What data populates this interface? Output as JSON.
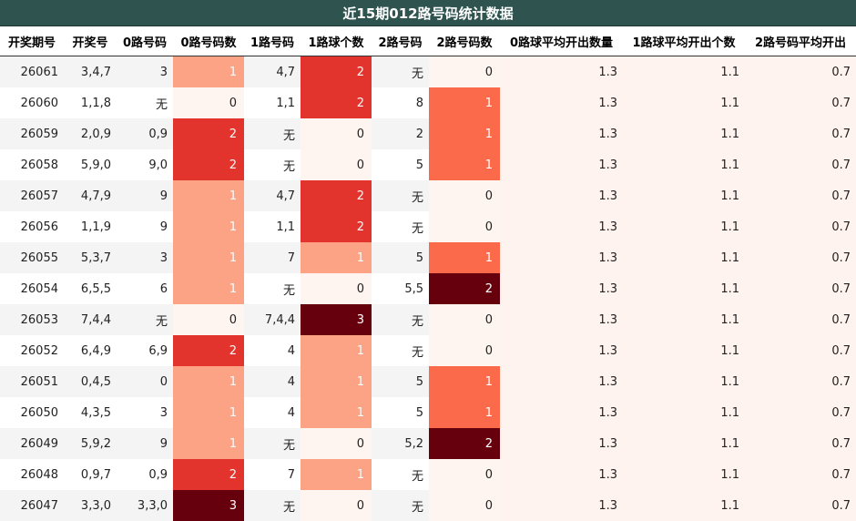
{
  "title": "近15期012路号码统计数据",
  "columns": [
    "开奖期号",
    "开奖号",
    "0路号码",
    "0路号码数",
    "1路号码",
    "1路球个数",
    "2路号码",
    "2路号码数",
    "0路球平均开出数量",
    "1路球平均开出个数",
    "2路号码平均开出"
  ],
  "colors": {
    "count_0": "#fff5f0",
    "count_1": "#fca385",
    "count_1_col2": "#fb6a4a",
    "count_2": "#e2332c",
    "count_2_col2": "#67000d",
    "count_3": "#67000d",
    "avg_bg": "#fff3ef"
  },
  "chart_data": {
    "type": "table",
    "rows": [
      {
        "issue": "26061",
        "draw": "3,4,7",
        "r0": "3",
        "c0": 1,
        "r1": "4,7",
        "c1": 2,
        "r2": "无",
        "c2": 0,
        "a0": "1.3",
        "a1": "1.1",
        "a2": "0.7"
      },
      {
        "issue": "26060",
        "draw": "1,1,8",
        "r0": "无",
        "c0": 0,
        "r1": "1,1",
        "c1": 2,
        "r2": "8",
        "c2": 1,
        "a0": "1.3",
        "a1": "1.1",
        "a2": "0.7"
      },
      {
        "issue": "26059",
        "draw": "2,0,9",
        "r0": "0,9",
        "c0": 2,
        "r1": "无",
        "c1": 0,
        "r2": "2",
        "c2": 1,
        "a0": "1.3",
        "a1": "1.1",
        "a2": "0.7"
      },
      {
        "issue": "26058",
        "draw": "5,9,0",
        "r0": "9,0",
        "c0": 2,
        "r1": "无",
        "c1": 0,
        "r2": "5",
        "c2": 1,
        "a0": "1.3",
        "a1": "1.1",
        "a2": "0.7"
      },
      {
        "issue": "26057",
        "draw": "4,7,9",
        "r0": "9",
        "c0": 1,
        "r1": "4,7",
        "c1": 2,
        "r2": "无",
        "c2": 0,
        "a0": "1.3",
        "a1": "1.1",
        "a2": "0.7"
      },
      {
        "issue": "26056",
        "draw": "1,1,9",
        "r0": "9",
        "c0": 1,
        "r1": "1,1",
        "c1": 2,
        "r2": "无",
        "c2": 0,
        "a0": "1.3",
        "a1": "1.1",
        "a2": "0.7"
      },
      {
        "issue": "26055",
        "draw": "5,3,7",
        "r0": "3",
        "c0": 1,
        "r1": "7",
        "c1": 1,
        "r2": "5",
        "c2": 1,
        "a0": "1.3",
        "a1": "1.1",
        "a2": "0.7"
      },
      {
        "issue": "26054",
        "draw": "6,5,5",
        "r0": "6",
        "c0": 1,
        "r1": "无",
        "c1": 0,
        "r2": "5,5",
        "c2": 2,
        "a0": "1.3",
        "a1": "1.1",
        "a2": "0.7"
      },
      {
        "issue": "26053",
        "draw": "7,4,4",
        "r0": "无",
        "c0": 0,
        "r1": "7,4,4",
        "c1": 3,
        "r2": "无",
        "c2": 0,
        "a0": "1.3",
        "a1": "1.1",
        "a2": "0.7"
      },
      {
        "issue": "26052",
        "draw": "6,4,9",
        "r0": "6,9",
        "c0": 2,
        "r1": "4",
        "c1": 1,
        "r2": "无",
        "c2": 0,
        "a0": "1.3",
        "a1": "1.1",
        "a2": "0.7"
      },
      {
        "issue": "26051",
        "draw": "0,4,5",
        "r0": "0",
        "c0": 1,
        "r1": "4",
        "c1": 1,
        "r2": "5",
        "c2": 1,
        "a0": "1.3",
        "a1": "1.1",
        "a2": "0.7"
      },
      {
        "issue": "26050",
        "draw": "4,3,5",
        "r0": "3",
        "c0": 1,
        "r1": "4",
        "c1": 1,
        "r2": "5",
        "c2": 1,
        "a0": "1.3",
        "a1": "1.1",
        "a2": "0.7"
      },
      {
        "issue": "26049",
        "draw": "5,9,2",
        "r0": "9",
        "c0": 1,
        "r1": "无",
        "c1": 0,
        "r2": "5,2",
        "c2": 2,
        "a0": "1.3",
        "a1": "1.1",
        "a2": "0.7"
      },
      {
        "issue": "26048",
        "draw": "0,9,7",
        "r0": "0,9",
        "c0": 2,
        "r1": "7",
        "c1": 1,
        "r2": "无",
        "c2": 0,
        "a0": "1.3",
        "a1": "1.1",
        "a2": "0.7"
      },
      {
        "issue": "26047",
        "draw": "3,3,0",
        "r0": "3,3,0",
        "c0": 3,
        "r1": "无",
        "c1": 0,
        "r2": "无",
        "c2": 0,
        "a0": "1.3",
        "a1": "1.1",
        "a2": "0.7"
      }
    ]
  }
}
